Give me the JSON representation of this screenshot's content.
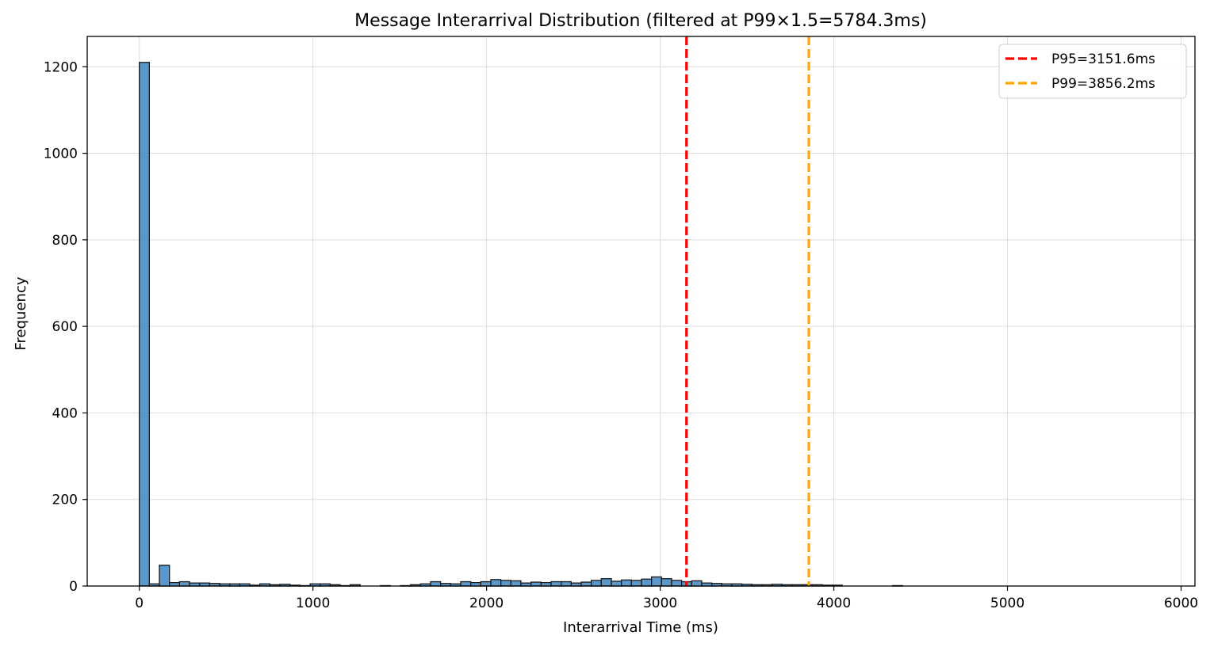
{
  "chart_data": {
    "type": "bar",
    "title": "Message Interarrival Distribution (filtered at P99×1.5=5784.3ms)",
    "xlabel": "Interarrival Time (ms)",
    "ylabel": "Frequency",
    "xlim": [
      -300,
      6080
    ],
    "ylim": [
      0,
      1270
    ],
    "xticks": [
      0,
      1000,
      2000,
      3000,
      4000,
      5000,
      6000
    ],
    "yticks": [
      0,
      200,
      400,
      600,
      800,
      1000,
      1200
    ],
    "grid": true,
    "legend_position": "top-right",
    "bin_width": 57.84,
    "bar_color": "#3e85c0",
    "bins_start": [
      0,
      57.84,
      115.69,
      173.53,
      231.37,
      289.22,
      347.06,
      404.9,
      462.74,
      520.59,
      578.43,
      636.27,
      694.12,
      751.96,
      809.8,
      867.65,
      925.49,
      983.33,
      1041.17,
      1099.02,
      1156.86,
      1214.7,
      1272.55,
      1330.39,
      1388.23,
      1446.08,
      1503.92,
      1561.76,
      1619.6,
      1677.45,
      1735.29,
      1793.13,
      1850.98,
      1908.82,
      1966.66,
      2024.51,
      2082.35,
      2140.19,
      2198.03,
      2255.88,
      2313.72,
      2371.56,
      2429.41,
      2487.25,
      2545.09,
      2602.94,
      2660.78,
      2718.62,
      2776.46,
      2834.31,
      2892.15,
      2949.99,
      3007.84,
      3065.68,
      3123.52,
      3181.37,
      3239.21,
      3297.05,
      3354.89,
      3412.74,
      3470.58,
      3528.42,
      3586.27,
      3644.11,
      3701.95,
      3759.8,
      3817.64,
      3875.48,
      3933.32,
      3991.17,
      4049.01,
      4106.85,
      4164.7,
      4222.54,
      4280.38,
      4338.23,
      4396.07,
      4453.91,
      4511.75,
      4569.6,
      4627.44,
      4685.28,
      4743.13,
      4800.97,
      4858.81,
      4916.66,
      4974.5,
      5032.34,
      5090.18,
      5148.03,
      5205.87,
      5263.71,
      5321.56,
      5379.4,
      5437.24,
      5495.09,
      5552.93,
      5610.77,
      5668.61,
      5726.46
    ],
    "values": [
      1210,
      5,
      48,
      8,
      10,
      7,
      7,
      6,
      5,
      5,
      5,
      2,
      5,
      3,
      4,
      2,
      1,
      5,
      5,
      3,
      1,
      3,
      0,
      0,
      1,
      0,
      1,
      3,
      5,
      10,
      6,
      5,
      10,
      8,
      10,
      15,
      13,
      12,
      7,
      9,
      8,
      10,
      10,
      7,
      9,
      13,
      17,
      11,
      14,
      13,
      16,
      21,
      17,
      13,
      10,
      12,
      7,
      6,
      5,
      5,
      4,
      3,
      3,
      4,
      3,
      3,
      3,
      3,
      2,
      2,
      0,
      0,
      0,
      0,
      0,
      1,
      0,
      0,
      0,
      0,
      0,
      0,
      0,
      0,
      0,
      0,
      0,
      0,
      0,
      0,
      0,
      0,
      0,
      0,
      0,
      0,
      0,
      0,
      0,
      0
    ],
    "vlines": [
      {
        "name": "P95=3151.6ms",
        "x": 3151.6,
        "color": "#ff0000"
      },
      {
        "name": "P99=3856.2ms",
        "x": 3856.2,
        "color": "#ffa500"
      }
    ]
  }
}
